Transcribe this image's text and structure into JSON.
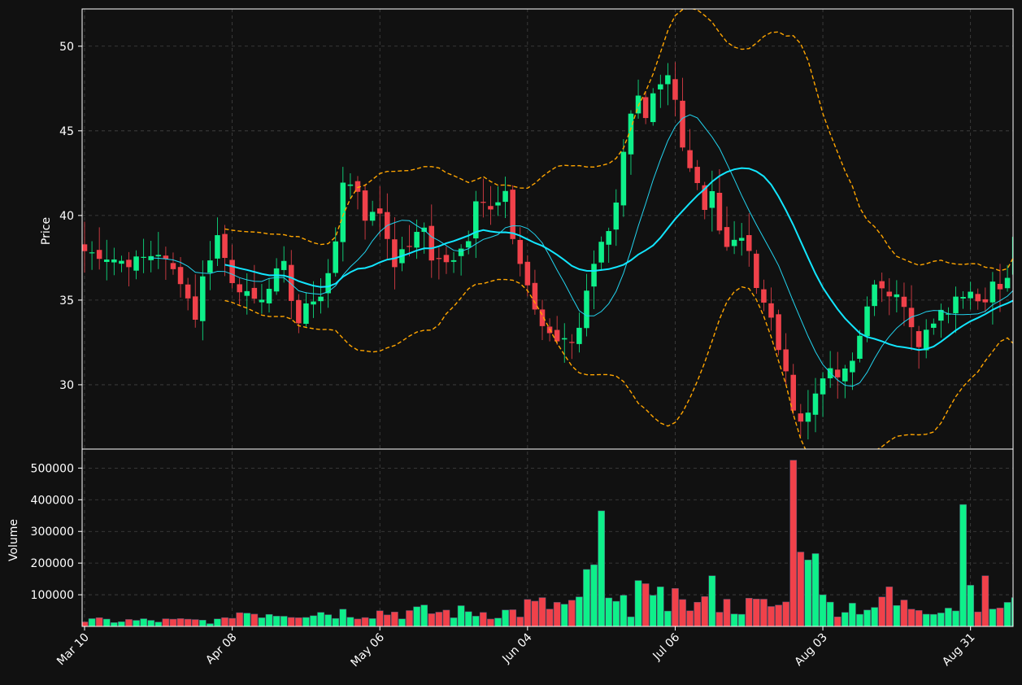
{
  "chart_data": {
    "type": "candlestick",
    "colors": {
      "background": "#111111",
      "up": "#0ef08a",
      "down": "#f0414a",
      "grid": "#444444",
      "axis": "#ffffff",
      "ma_short": "#22d3ee",
      "ma_long": "#12e6ff",
      "bands": "#ffa500"
    },
    "price_axis": {
      "label": "Price",
      "ylim": [
        26.2,
        52.2
      ],
      "ticks": [
        30,
        35,
        40,
        45,
        50
      ]
    },
    "volume_axis": {
      "label": "Volume",
      "ylim": [
        0,
        560000
      ],
      "ticks": [
        100000,
        200000,
        300000,
        400000,
        500000
      ]
    },
    "x_ticks": [
      {
        "label": "Mar 10",
        "index": 0
      },
      {
        "label": "Apr 08",
        "index": 20
      },
      {
        "label": "May 06",
        "index": 40
      },
      {
        "label": "Jun 04",
        "index": 60
      },
      {
        "label": "Jul 06",
        "index": 80
      },
      {
        "label": "Aug 03",
        "index": 100
      },
      {
        "label": "Aug 31",
        "index": 120
      }
    ],
    "n_bars": 127,
    "grid": true,
    "price_key": [
      [
        0,
        37.9
      ],
      [
        6,
        37.2
      ],
      [
        10,
        37.8
      ],
      [
        13,
        36.2
      ],
      [
        15,
        34.0
      ],
      [
        16,
        36.3
      ],
      [
        18,
        38.8
      ],
      [
        20,
        36.2
      ],
      [
        23,
        34.8
      ],
      [
        25,
        35.7
      ],
      [
        27,
        37.5
      ],
      [
        28,
        35.0
      ],
      [
        29,
        33.6
      ],
      [
        30,
        34.7
      ],
      [
        32,
        35.4
      ],
      [
        33,
        36.3
      ],
      [
        34,
        38.5
      ],
      [
        35,
        42.1
      ],
      [
        37,
        41.5
      ],
      [
        38,
        39.9
      ],
      [
        40,
        40.2
      ],
      [
        42,
        37.2
      ],
      [
        44,
        38.3
      ],
      [
        46,
        39.3
      ],
      [
        47,
        37.5
      ],
      [
        50,
        37.2
      ],
      [
        52,
        38.7
      ],
      [
        53,
        41.0
      ],
      [
        55,
        40.6
      ],
      [
        57,
        41.5
      ],
      [
        58,
        38.5
      ],
      [
        60,
        35.6
      ],
      [
        62,
        33.5
      ],
      [
        64,
        32.6
      ],
      [
        66,
        32.5
      ],
      [
        67,
        33.4
      ],
      [
        68,
        35.7
      ],
      [
        69,
        37.3
      ],
      [
        71,
        39.3
      ],
      [
        72,
        40.9
      ],
      [
        73,
        43.6
      ],
      [
        74,
        45.8
      ],
      [
        75,
        46.8
      ],
      [
        76,
        45.5
      ],
      [
        77,
        47.0
      ],
      [
        79,
        48.2
      ],
      [
        80,
        46.8
      ],
      [
        81,
        44.3
      ],
      [
        82,
        42.9
      ],
      [
        83,
        42.0
      ],
      [
        84,
        40.5
      ],
      [
        85,
        41.5
      ],
      [
        86,
        39.0
      ],
      [
        87,
        38.0
      ],
      [
        88,
        38.7
      ],
      [
        89,
        38.4
      ],
      [
        90,
        38.2
      ],
      [
        91,
        35.8
      ],
      [
        92,
        34.8
      ],
      [
        93,
        34.0
      ],
      [
        94,
        32.3
      ],
      [
        95,
        30.5
      ],
      [
        96,
        28.5
      ],
      [
        97,
        27.6
      ],
      [
        98,
        28.3
      ],
      [
        99,
        29.5
      ],
      [
        100,
        30.6
      ],
      [
        101,
        30.8
      ],
      [
        102,
        30.2
      ],
      [
        103,
        31.1
      ],
      [
        104,
        31.7
      ],
      [
        105,
        33.1
      ],
      [
        106,
        34.5
      ],
      [
        107,
        35.8
      ],
      [
        108,
        35.6
      ],
      [
        109,
        35.0
      ],
      [
        110,
        35.5
      ],
      [
        111,
        34.4
      ],
      [
        112,
        33.6
      ],
      [
        113,
        32.5
      ],
      [
        114,
        33.5
      ],
      [
        115,
        33.9
      ],
      [
        116,
        34.4
      ],
      [
        117,
        34.0
      ],
      [
        118,
        35.0
      ],
      [
        119,
        35.4
      ],
      [
        120,
        35.5
      ],
      [
        121,
        35.2
      ],
      [
        122,
        35.0
      ],
      [
        123,
        36.1
      ],
      [
        124,
        35.9
      ],
      [
        125,
        36.4
      ],
      [
        126,
        38.9
      ]
    ],
    "volume_spikes": [
      [
        68,
        180000
      ],
      [
        69,
        195000
      ],
      [
        70,
        365000
      ],
      [
        71,
        90000
      ],
      [
        75,
        145000
      ],
      [
        76,
        135000
      ],
      [
        78,
        125000
      ],
      [
        80,
        120000
      ],
      [
        85,
        160000
      ],
      [
        96,
        525000
      ],
      [
        97,
        235000
      ],
      [
        98,
        210000
      ],
      [
        99,
        230000
      ],
      [
        100,
        100000
      ],
      [
        109,
        125000
      ],
      [
        119,
        385000
      ],
      [
        120,
        130000
      ],
      [
        122,
        160000
      ]
    ],
    "series": [
      {
        "name": "",
        "kind": "sma_short"
      },
      {
        "name": "",
        "kind": "sma_long"
      },
      {
        "name": "",
        "kind": "bollinger_upper"
      },
      {
        "name": "",
        "kind": "bollinger_lower"
      }
    ]
  }
}
